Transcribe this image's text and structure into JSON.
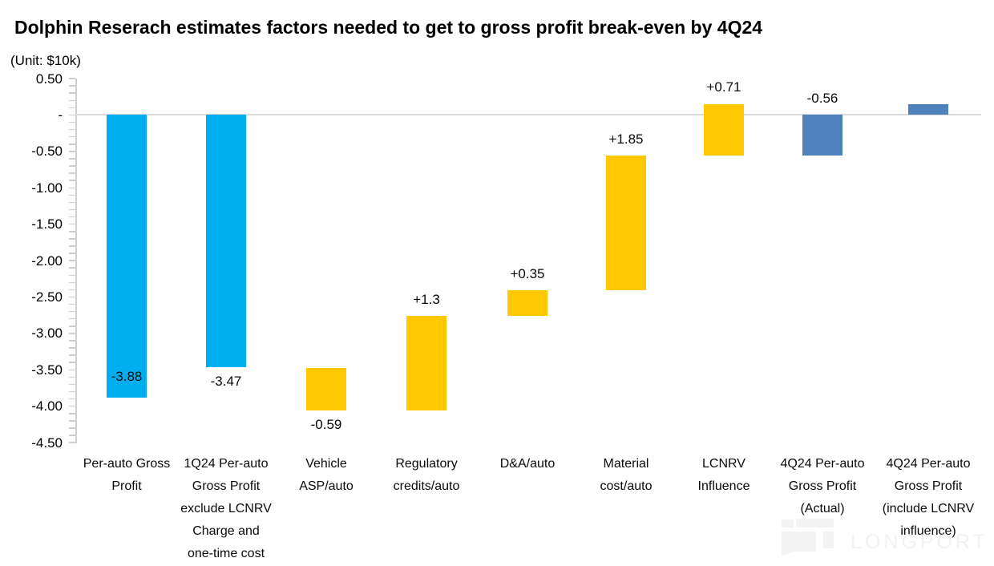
{
  "title": "Dolphin Reserach estimates factors needed to get to gross profit break-even by 4Q24",
  "unit_label": "(Unit: $10k)",
  "watermark": {
    "brand": "LONGPORT"
  },
  "colors": {
    "actual_bar": "#00AEEF",
    "bridge_bar": "#FFC800",
    "result_bar": "#4F81BD",
    "zero_line": "#DADADA",
    "axis": "#D0CECE",
    "label_text": "#0A0A0A",
    "watermark": "#F2F2F2"
  },
  "chart_data": {
    "type": "bar",
    "subtype": "waterfall",
    "title": "Dolphin Reserach estimates factors needed to get to gross profit break-even by 4Q24",
    "unit": "(Unit: $10k)",
    "xlabel": "",
    "ylabel": "",
    "ylim": [
      -4.5,
      0.5
    ],
    "grid": "zero line only",
    "legend": "none",
    "y_axis": {
      "min": -4.5,
      "max": 0.5,
      "major_step": 0.5,
      "minor_tick_step": 0.1,
      "tick_labels": [
        "0.50",
        "-",
        "-0.50",
        "-1.00",
        "-1.50",
        "-2.00",
        "-2.50",
        "-3.00",
        "-3.50",
        "-4.00",
        "-4.50"
      ],
      "tick_values": [
        0.5,
        0,
        -0.5,
        -1,
        -1.5,
        -2,
        -2.5,
        -3,
        -3.5,
        -4,
        -4.5
      ]
    },
    "bars": [
      {
        "category": "Per-auto Gross Profit",
        "lines": [
          "Per-auto Gross",
          "Profit"
        ],
        "start": 0,
        "end": -3.88,
        "value": -3.88,
        "value_label": "-3.88",
        "label_position": "inside-end",
        "color_key": "actual_bar"
      },
      {
        "category": "1Q24 Per-auto Gross Profit exclude LCNRV Charge and one-time cost",
        "lines": [
          "1Q24 Per-auto",
          "Gross Profit",
          "exclude LCNRV",
          "Charge and",
          "one-time cost"
        ],
        "start": 0,
        "end": -3.47,
        "value": -3.47,
        "value_label": "-3.47",
        "label_position": "below",
        "color_key": "actual_bar"
      },
      {
        "category": "Vehicle ASP/auto",
        "lines": [
          "Vehicle",
          "ASP/auto"
        ],
        "start": -3.47,
        "end": -4.06,
        "value": -0.59,
        "value_label": "-0.59",
        "label_position": "below",
        "color_key": "bridge_bar"
      },
      {
        "category": "Regulatory credits/auto",
        "lines": [
          "Regulatory",
          "credits/auto"
        ],
        "start": -4.06,
        "end": -2.76,
        "value": 1.3,
        "value_label": "+1.3",
        "label_position": "above",
        "color_key": "bridge_bar"
      },
      {
        "category": "D&A/auto",
        "lines": [
          "D&A/auto"
        ],
        "start": -2.76,
        "end": -2.41,
        "value": 0.35,
        "value_label": "+0.35",
        "label_position": "above",
        "color_key": "bridge_bar"
      },
      {
        "category": "Material cost/auto",
        "lines": [
          "Material",
          "cost/auto"
        ],
        "start": -2.41,
        "end": -0.56,
        "value": 1.85,
        "value_label": "+1.85",
        "label_position": "above",
        "color_key": "bridge_bar"
      },
      {
        "category": "LCNRV Influence",
        "lines": [
          "LCNRV",
          "Influence"
        ],
        "start": -0.56,
        "end": 0.15,
        "value": 0.71,
        "value_label": "+0.71",
        "label_position": "above",
        "color_key": "bridge_bar"
      },
      {
        "category": "4Q24 Per-auto Gross Profit (Actual)",
        "lines": [
          "4Q24 Per-auto",
          "Gross Profit",
          "(Actual)"
        ],
        "start": 0,
        "end": -0.56,
        "value": -0.56,
        "value_label": "-0.56",
        "label_position": "above",
        "color_key": "result_bar"
      },
      {
        "category": "4Q24 Per-auto Gross Profit (include LCNRV influence)",
        "lines": [
          "4Q24 Per-auto",
          "Gross Profit",
          "(include LCNRV",
          "influence)"
        ],
        "start": 0,
        "end": 0.15,
        "value": 0.15,
        "value_label": "",
        "label_position": "none",
        "color_key": "result_bar"
      }
    ]
  }
}
